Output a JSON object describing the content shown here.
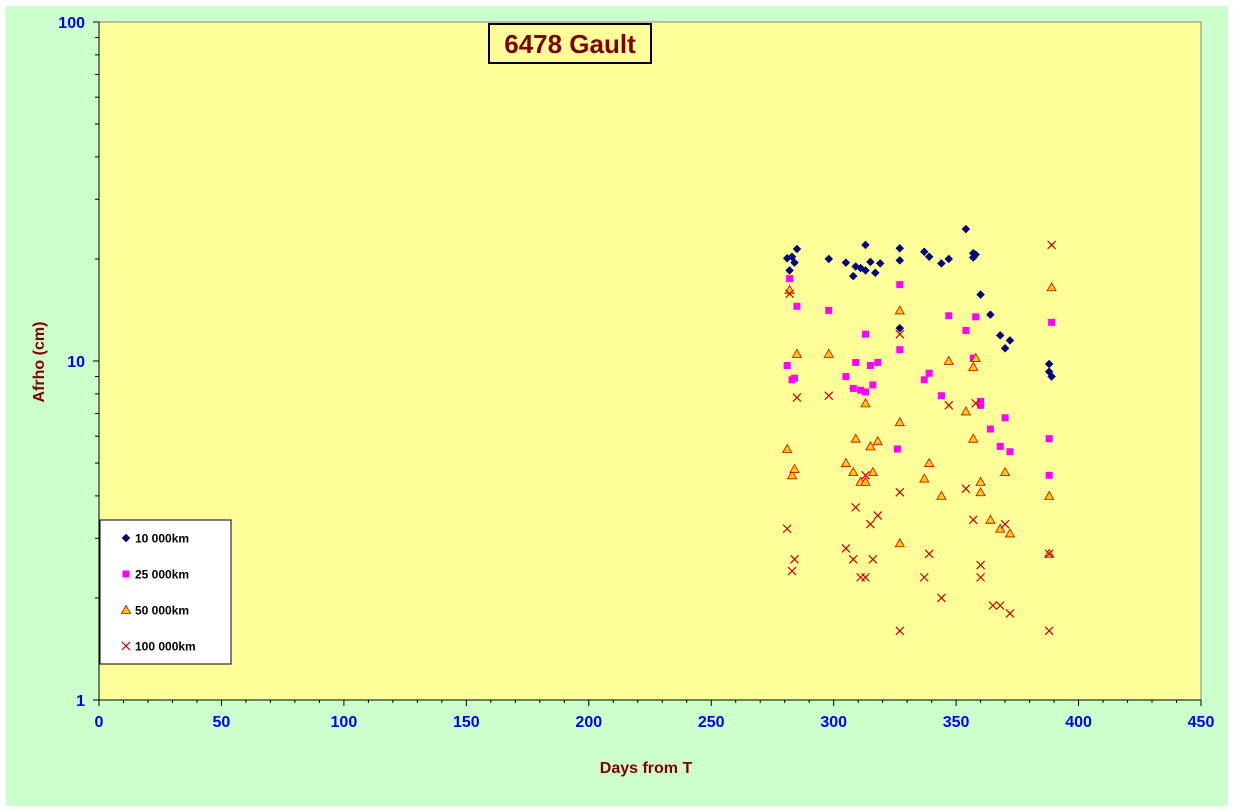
{
  "chart_data": {
    "type": "scatter",
    "title": "6478 Gault",
    "xlabel": "Days from T",
    "ylabel": "Afrho (cm)",
    "xlim": [
      0,
      450
    ],
    "ylim": [
      1,
      100
    ],
    "y_scale": "log",
    "x_ticks": [
      0,
      50,
      100,
      150,
      200,
      250,
      300,
      350,
      400,
      450
    ],
    "y_ticks": [
      1,
      10,
      100
    ],
    "grid": false,
    "legend_position": "bottom-left",
    "colors": {
      "figure_background": "#ccffcc",
      "plot_background": "#ffff99",
      "tick_labels": "#0000ff",
      "axis_titles": "#800000"
    },
    "series": [
      {
        "name": "10 000km",
        "marker": "diamond",
        "color": "#000080",
        "x": [
          281,
          282,
          283,
          284,
          285,
          298,
          305,
          308,
          309,
          311,
          313,
          313,
          315,
          317,
          319,
          327,
          327,
          327,
          337,
          339,
          344,
          347,
          354,
          357,
          357,
          358,
          360,
          364,
          368,
          370,
          372,
          388,
          388,
          389
        ],
        "y": [
          20.1,
          18.5,
          20.3,
          19.5,
          21.4,
          20.0,
          19.5,
          17.8,
          19.0,
          18.8,
          22.0,
          18.5,
          19.6,
          18.2,
          19.4,
          12.5,
          21.5,
          19.8,
          21.0,
          20.3,
          19.4,
          20.0,
          24.5,
          20.2,
          20.8,
          20.6,
          15.7,
          13.7,
          11.9,
          10.9,
          11.5,
          9.8,
          9.3,
          9.0
        ]
      },
      {
        "name": "25 000km",
        "marker": "square",
        "color": "#ff00ff",
        "x": [
          281,
          282,
          283,
          284,
          285,
          298,
          305,
          308,
          309,
          311,
          313,
          313,
          315,
          316,
          318,
          326,
          327,
          327,
          337,
          339,
          344,
          347,
          354,
          357,
          358,
          360,
          360,
          364,
          368,
          370,
          372,
          388,
          388,
          389
        ],
        "y": [
          9.7,
          17.5,
          8.8,
          8.9,
          14.5,
          14.1,
          9.0,
          8.3,
          9.9,
          8.2,
          12.0,
          8.1,
          9.7,
          8.5,
          9.9,
          5.5,
          16.8,
          10.8,
          8.8,
          9.2,
          7.9,
          13.6,
          12.3,
          10.2,
          13.5,
          7.6,
          7.4,
          6.3,
          5.6,
          6.8,
          5.4,
          5.9,
          4.6,
          13.0
        ]
      },
      {
        "name": "50 000km",
        "marker": "triangle",
        "color": "#ffcc00",
        "stroke": "#cc0000",
        "x": [
          281,
          282,
          283,
          284,
          285,
          298,
          305,
          308,
          309,
          311,
          313,
          313,
          315,
          316,
          318,
          327,
          327,
          327,
          337,
          339,
          344,
          347,
          354,
          357,
          357,
          358,
          360,
          360,
          364,
          368,
          370,
          372,
          388,
          388,
          389
        ],
        "y": [
          5.5,
          16.2,
          4.6,
          4.8,
          10.5,
          10.5,
          5.0,
          4.7,
          5.9,
          4.4,
          7.5,
          4.4,
          5.6,
          4.7,
          5.8,
          2.9,
          14.1,
          6.6,
          4.5,
          5.0,
          4.0,
          10.0,
          7.1,
          9.6,
          5.9,
          10.2,
          4.1,
          4.4,
          3.4,
          3.2,
          4.7,
          3.1,
          4.0,
          2.7,
          16.5
        ]
      },
      {
        "name": "100 000km",
        "marker": "x",
        "color": "#cc0000",
        "x": [
          281,
          282,
          283,
          284,
          285,
          298,
          305,
          308,
          309,
          311,
          313,
          313,
          315,
          316,
          318,
          327,
          327,
          327,
          337,
          339,
          344,
          347,
          354,
          357,
          358,
          360,
          360,
          365,
          368,
          370,
          372,
          388,
          388,
          389
        ],
        "y": [
          3.2,
          15.8,
          2.4,
          2.6,
          7.8,
          7.9,
          2.8,
          2.6,
          3.7,
          2.3,
          4.6,
          2.3,
          3.3,
          2.6,
          3.5,
          1.6,
          12.0,
          4.1,
          2.3,
          2.7,
          2.0,
          7.4,
          4.2,
          3.4,
          7.5,
          2.3,
          2.5,
          1.9,
          1.9,
          3.3,
          1.8,
          1.6,
          2.7,
          22.0
        ]
      }
    ]
  }
}
